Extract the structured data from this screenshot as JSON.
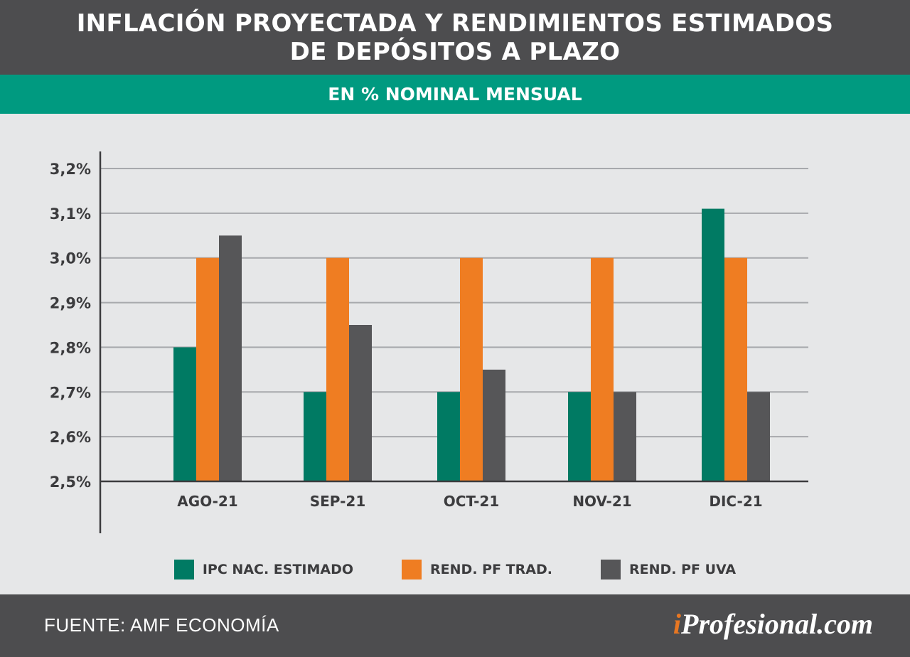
{
  "header": {
    "title_line1": "INFLACIÓN PROYECTADA Y RENDIMIENTOS ESTIMADOS",
    "title_line2": "DE DEPÓSITOS A PLAZO",
    "subtitle": "EN % NOMINAL MENSUAL"
  },
  "footer": {
    "source": "FUENTE: AMF ECONOMÍA",
    "brand_accent": "i",
    "brand_rest": "Profesional.com"
  },
  "colors": {
    "ipc": "#007a63",
    "pf_trad": "#ef7d22",
    "pf_uva": "#565658",
    "header_bg": "#4d4d4f",
    "subheader_bg": "#009a80",
    "background": "#e6e7e8"
  },
  "chart_data": {
    "type": "bar",
    "title": "INFLACIÓN PROYECTADA Y RENDIMIENTOS ESTIMADOS DE DEPÓSITOS A PLAZO",
    "subtitle": "EN % NOMINAL MENSUAL",
    "categories": [
      "AGO-21",
      "SEP-21",
      "OCT-21",
      "NOV-21",
      "DIC-21"
    ],
    "series": [
      {
        "name": "IPC NAC. ESTIMADO",
        "color": "#007a63",
        "values": [
          2.8,
          2.7,
          2.7,
          2.7,
          3.11
        ]
      },
      {
        "name": "REND. PF TRAD.",
        "color": "#ef7d22",
        "values": [
          3.0,
          3.0,
          3.0,
          3.0,
          3.0
        ]
      },
      {
        "name": "REND. PF UVA",
        "color": "#565658",
        "values": [
          3.05,
          2.85,
          2.75,
          2.7,
          2.7
        ]
      }
    ],
    "ylim": [
      2.5,
      3.2
    ],
    "yticks": [
      2.5,
      2.6,
      2.7,
      2.8,
      2.9,
      3.0,
      3.1,
      3.2
    ],
    "ytick_labels": [
      "2,5%",
      "2,6%",
      "2,7%",
      "2,8%",
      "2,9%",
      "3,0%",
      "3,1%",
      "3,2%"
    ],
    "grid": true,
    "legend_position": "bottom"
  }
}
